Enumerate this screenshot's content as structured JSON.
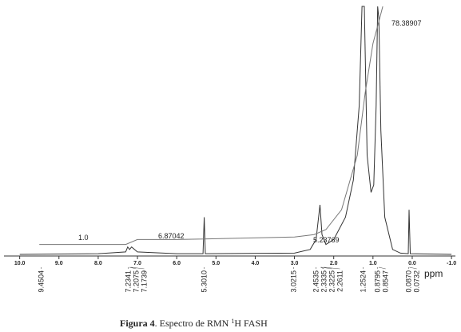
{
  "chart_data": {
    "type": "line",
    "axis_label": "ppm",
    "xlim": [
      10.4,
      -1.1
    ],
    "ylim": [
      0,
      100
    ],
    "xticks": [
      {
        "value": 10,
        "label": "10.0"
      },
      {
        "value": 9,
        "label": "9.0"
      },
      {
        "value": 8,
        "label": "8.0"
      },
      {
        "value": 7,
        "label": "7.0"
      },
      {
        "value": 6,
        "label": "6.0"
      },
      {
        "value": 5,
        "label": "5.0"
      },
      {
        "value": 4,
        "label": "4.0"
      },
      {
        "value": 3,
        "label": "3.0"
      },
      {
        "value": 2,
        "label": "2.0"
      },
      {
        "value": 1,
        "label": "1.0"
      },
      {
        "value": 0,
        "label": "0.0"
      },
      {
        "value": -1,
        "label": "-1.0"
      }
    ],
    "series": [
      {
        "color": "#333333",
        "x": [
          10.0,
          8.0,
          7.3,
          7.25,
          7.2,
          7.15,
          7.0,
          6.0,
          5.33,
          5.3,
          5.27,
          3.0,
          2.6,
          2.45,
          2.35,
          2.3,
          2.2,
          2.0,
          1.7,
          1.5,
          1.35,
          1.28,
          1.22,
          1.15,
          1.05,
          0.98,
          0.92,
          0.88,
          0.85,
          0.8,
          0.7,
          0.5,
          0.3,
          0.1,
          0.08,
          0.05,
          -1.0
        ],
        "values": [
          0,
          0.3,
          1,
          3,
          2,
          3,
          1,
          0.3,
          0.3,
          15,
          0.3,
          0.5,
          2,
          6,
          20,
          8,
          4,
          6,
          15,
          30,
          60,
          100,
          100,
          40,
          25,
          28,
          60,
          100,
          95,
          50,
          15,
          2,
          0.5,
          0.3,
          18,
          0.3,
          0
        ]
      },
      {
        "color": "#777777",
        "x": [
          9.5,
          7.3,
          7.0,
          6.0,
          3.0,
          2.5,
          2.2,
          1.8,
          1.4,
          1.2,
          1.0,
          0.8,
          0.75
        ],
        "values": [
          4,
          4,
          6,
          6,
          7,
          8,
          10,
          18,
          40,
          65,
          85,
          97,
          100
        ]
      }
    ],
    "peaks": [
      {
        "value": 9.4504,
        "label": "9.4504"
      },
      {
        "value": 7.2341,
        "label": "7.2341"
      },
      {
        "value": 7.2075,
        "label": "7.2075"
      },
      {
        "value": 7.1739,
        "label": "7.1739"
      },
      {
        "value": 5.301,
        "label": "5.3010"
      },
      {
        "value": 3.0215,
        "label": "3.0215"
      },
      {
        "value": 2.4535,
        "label": "2.4535"
      },
      {
        "value": 2.3335,
        "label": "2.3335"
      },
      {
        "value": 2.3225,
        "label": "2.3225"
      },
      {
        "value": 2.2611,
        "label": "2.2611"
      },
      {
        "value": 1.2524,
        "label": "1.2524"
      },
      {
        "value": 0.8795,
        "label": "0.8795"
      },
      {
        "value": 0.8547,
        "label": "0.8547"
      },
      {
        "value": 0.087,
        "label": "0.0870"
      },
      {
        "value": 0.0732,
        "label": "0.0732"
      }
    ],
    "annotations": [
      "1.0",
      "6.87042",
      "5.23769",
      "78.38907"
    ],
    "caption": {
      "label": "Figura 4",
      "text": ". Espectro de RMN ",
      "sup": "1",
      "rest": "H FASH"
    }
  }
}
